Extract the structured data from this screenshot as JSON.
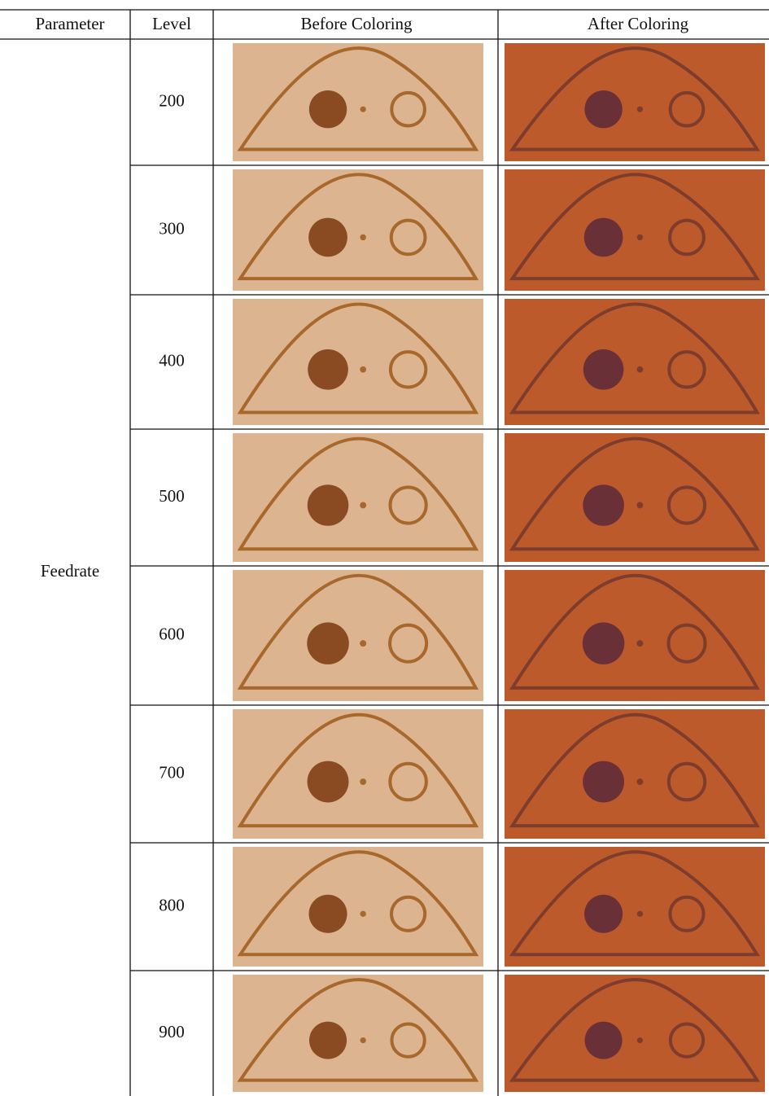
{
  "table": {
    "header": [
      "Parameter",
      "Level",
      "Before Coloring",
      "After Coloring"
    ],
    "parameter": "Feedrate",
    "levels": [
      "200",
      "300",
      "400",
      "500",
      "600",
      "700",
      "800",
      "900"
    ]
  }
}
